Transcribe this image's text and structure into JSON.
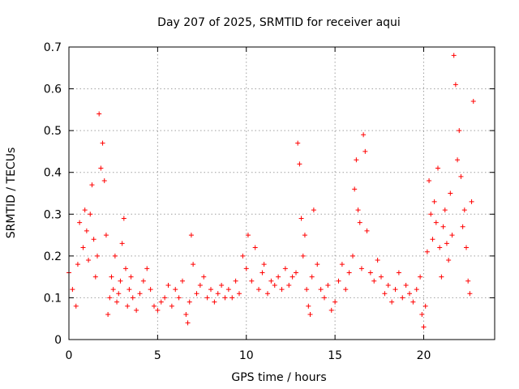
{
  "chart_data": {
    "type": "scatter",
    "title": "Day 207 of 2025, SRMTID for receiver aqui",
    "xlabel": "GPS time / hours",
    "ylabel": "SRMTID / TECUs",
    "xlim": [
      0,
      24
    ],
    "ylim": [
      0,
      0.7
    ],
    "xticks": [
      0,
      5,
      10,
      15,
      20
    ],
    "xtick_labels": [
      "0",
      "5",
      "10",
      "15",
      "20"
    ],
    "yticks": [
      0,
      0.1,
      0.2,
      0.3,
      0.4,
      0.5,
      0.6,
      0.7
    ],
    "ytick_labels": [
      "0",
      "0.1",
      "0.2",
      "0.3",
      "0.4",
      "0.5",
      "0.6",
      "0.7"
    ],
    "grid": true,
    "marker": "+",
    "series": [
      {
        "name": "SRMTID",
        "color": "#ff0000",
        "x": [
          0.0,
          0.2,
          0.4,
          0.5,
          0.6,
          0.8,
          0.9,
          1.0,
          1.1,
          1.2,
          1.3,
          1.4,
          1.5,
          1.6,
          1.7,
          1.8,
          1.9,
          2.0,
          2.1,
          2.2,
          2.3,
          2.4,
          2.5,
          2.6,
          2.7,
          2.8,
          2.9,
          3.0,
          3.1,
          3.2,
          3.3,
          3.4,
          3.5,
          3.6,
          3.8,
          4.0,
          4.2,
          4.4,
          4.6,
          4.8,
          5.0,
          5.2,
          5.4,
          5.6,
          5.8,
          6.0,
          6.2,
          6.4,
          6.6,
          6.7,
          6.8,
          6.9,
          7.0,
          7.2,
          7.4,
          7.6,
          7.8,
          8.0,
          8.2,
          8.4,
          8.6,
          8.8,
          9.0,
          9.2,
          9.4,
          9.6,
          9.8,
          10.0,
          10.1,
          10.3,
          10.5,
          10.7,
          10.9,
          11.0,
          11.2,
          11.4,
          11.6,
          11.8,
          12.0,
          12.2,
          12.4,
          12.6,
          12.8,
          12.9,
          13.0,
          13.1,
          13.2,
          13.3,
          13.4,
          13.5,
          13.6,
          13.7,
          13.8,
          14.0,
          14.2,
          14.4,
          14.6,
          14.8,
          15.0,
          15.2,
          15.4,
          15.6,
          15.8,
          16.0,
          16.1,
          16.2,
          16.3,
          16.4,
          16.5,
          16.6,
          16.7,
          16.8,
          17.0,
          17.2,
          17.4,
          17.6,
          17.8,
          18.0,
          18.2,
          18.4,
          18.6,
          18.8,
          19.0,
          19.2,
          19.4,
          19.6,
          19.8,
          19.9,
          20.0,
          20.1,
          20.2,
          20.3,
          20.4,
          20.5,
          20.6,
          20.7,
          20.8,
          20.9,
          21.0,
          21.1,
          21.2,
          21.3,
          21.4,
          21.5,
          21.6,
          21.7,
          21.8,
          21.9,
          22.0,
          22.1,
          22.2,
          22.3,
          22.4,
          22.5,
          22.6,
          22.7,
          22.8
        ],
        "values": [
          0.16,
          0.12,
          0.08,
          0.18,
          0.28,
          0.22,
          0.31,
          0.26,
          0.19,
          0.3,
          0.37,
          0.24,
          0.15,
          0.2,
          0.54,
          0.41,
          0.47,
          0.38,
          0.25,
          0.06,
          0.1,
          0.15,
          0.12,
          0.2,
          0.09,
          0.11,
          0.14,
          0.23,
          0.29,
          0.17,
          0.08,
          0.12,
          0.15,
          0.1,
          0.07,
          0.11,
          0.14,
          0.17,
          0.12,
          0.08,
          0.07,
          0.09,
          0.1,
          0.13,
          0.08,
          0.12,
          0.1,
          0.14,
          0.06,
          0.04,
          0.09,
          0.25,
          0.18,
          0.11,
          0.13,
          0.15,
          0.1,
          0.12,
          0.09,
          0.11,
          0.13,
          0.1,
          0.12,
          0.1,
          0.14,
          0.11,
          0.2,
          0.17,
          0.25,
          0.14,
          0.22,
          0.12,
          0.16,
          0.18,
          0.11,
          0.14,
          0.13,
          0.15,
          0.12,
          0.17,
          0.13,
          0.15,
          0.16,
          0.47,
          0.42,
          0.29,
          0.2,
          0.25,
          0.12,
          0.08,
          0.06,
          0.15,
          0.31,
          0.18,
          0.12,
          0.1,
          0.13,
          0.07,
          0.09,
          0.14,
          0.18,
          0.12,
          0.16,
          0.2,
          0.36,
          0.43,
          0.31,
          0.28,
          0.17,
          0.49,
          0.45,
          0.26,
          0.16,
          0.14,
          0.19,
          0.15,
          0.11,
          0.13,
          0.09,
          0.12,
          0.16,
          0.1,
          0.13,
          0.11,
          0.09,
          0.12,
          0.15,
          0.06,
          0.03,
          0.08,
          0.21,
          0.38,
          0.3,
          0.24,
          0.33,
          0.28,
          0.41,
          0.22,
          0.15,
          0.27,
          0.31,
          0.23,
          0.19,
          0.35,
          0.25,
          0.68,
          0.61,
          0.43,
          0.5,
          0.39,
          0.27,
          0.31,
          0.22,
          0.14,
          0.11,
          0.33,
          0.57
        ]
      }
    ]
  }
}
